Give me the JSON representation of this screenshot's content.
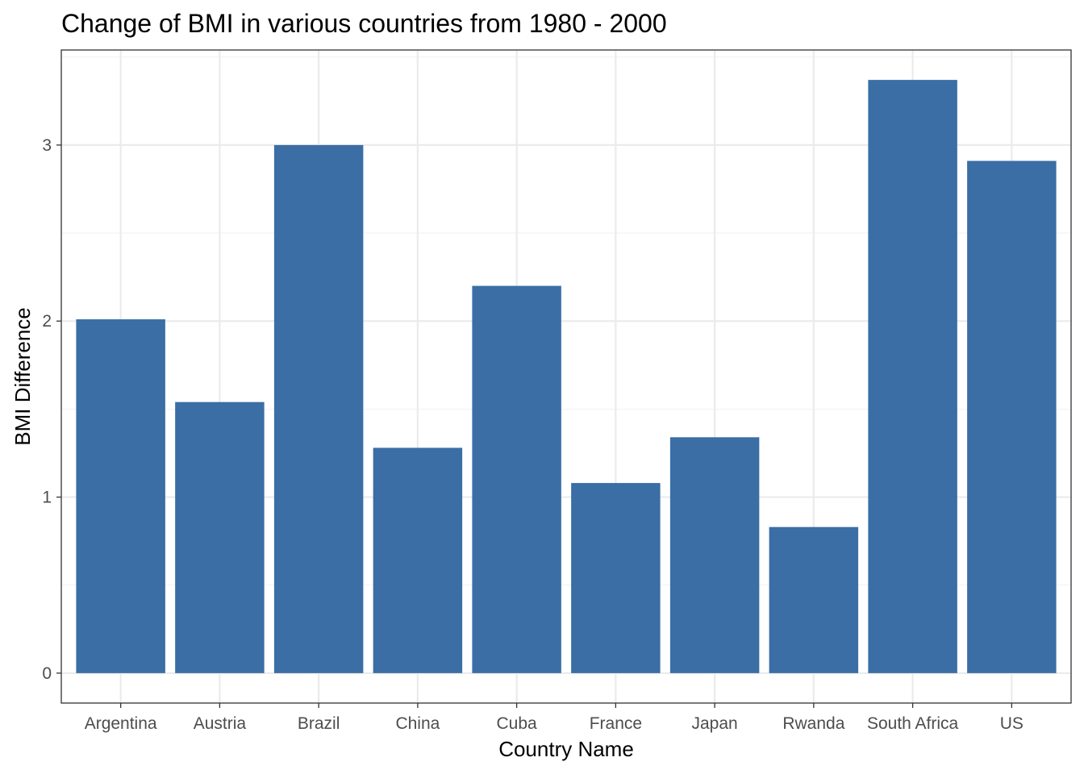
{
  "chart_data": {
    "type": "bar",
    "title": "Change of BMI in various countries from 1980 - 2000",
    "xlabel": "Country Name",
    "ylabel": "BMI Difference",
    "categories": [
      "Argentina",
      "Austria",
      "Brazil",
      "China",
      "Cuba",
      "France",
      "Japan",
      "Rwanda",
      "South Africa",
      "US"
    ],
    "values": [
      2.01,
      1.54,
      3.0,
      1.28,
      2.2,
      1.08,
      1.34,
      0.83,
      3.37,
      2.91
    ],
    "ylim": [
      -0.17,
      3.54
    ],
    "yticks": [
      0,
      1,
      2,
      3
    ],
    "ytick_labels": [
      "0",
      "1",
      "2",
      "3"
    ],
    "grid": true,
    "legend": "none",
    "colors": {
      "bar": "#3A6EA5",
      "panel_border": "#333333",
      "grid_major": "#EBEBEB",
      "grid_minor": "#F2F2F2",
      "background": "#FFFFFF"
    }
  }
}
